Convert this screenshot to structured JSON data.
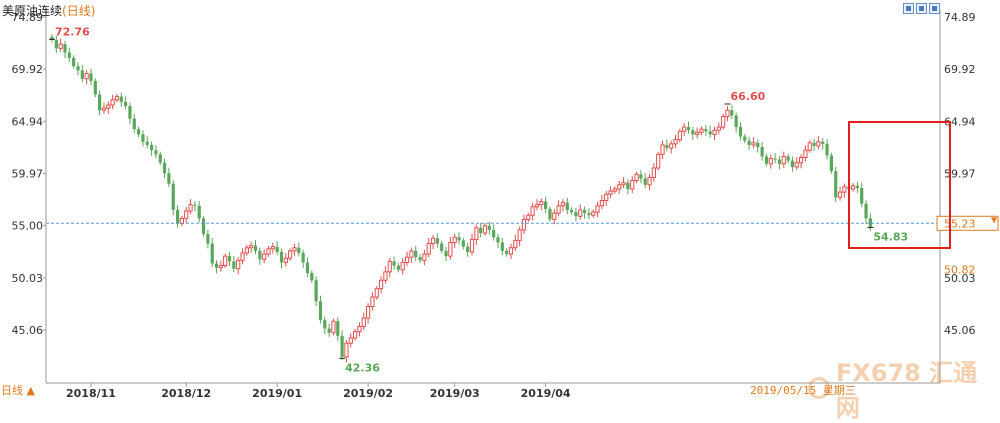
{
  "chart_title": "美原油连续",
  "chart_subtitle": "(日线)",
  "period_label": "日线 ▲",
  "date_stamp": "2019/05/15 星期三",
  "watermark": "FX678 汇通网",
  "colors": {
    "up": "#e05050",
    "down": "#5aa65a",
    "dash": "#5a9bd5",
    "box": "#e02020",
    "orange": "#e07a20"
  },
  "chart_data": {
    "type": "candlestick",
    "title": "美原油连续",
    "y_ticks": [
      74.89,
      69.92,
      64.94,
      59.97,
      55.0,
      50.03,
      45.06
    ],
    "ylim": [
      42.36,
      74.89
    ],
    "x_tick_labels": [
      "2018/11",
      "2018/12",
      "2019/01",
      "2019/02",
      "2019/03",
      "2019/04"
    ],
    "x_tick_index": [
      9,
      31,
      52,
      73,
      93,
      114
    ],
    "annotations": {
      "high": 72.76,
      "peak": 66.6,
      "low": 42.36,
      "last": 54.83
    },
    "current_price": 55.23,
    "right_extra_label": 50.82,
    "closes": [
      72.7,
      71.9,
      72.3,
      71.5,
      71.0,
      70.2,
      69.8,
      69.0,
      69.5,
      68.8,
      67.5,
      66.0,
      66.2,
      66.5,
      67.0,
      67.3,
      66.8,
      66.4,
      65.2,
      64.2,
      63.7,
      63.0,
      62.7,
      62.2,
      61.8,
      61.0,
      60.0,
      59.0,
      56.5,
      55.2,
      55.7,
      56.4,
      57.0,
      56.9,
      55.7,
      54.2,
      53.3,
      51.4,
      51.0,
      51.2,
      52.1,
      51.6,
      50.9,
      51.7,
      52.4,
      52.9,
      53.1,
      52.6,
      51.8,
      52.3,
      52.8,
      53.0,
      52.5,
      51.5,
      51.9,
      52.6,
      52.9,
      52.4,
      51.5,
      50.5,
      49.8,
      47.8,
      46.0,
      45.2,
      44.8,
      45.9,
      44.5,
      42.5,
      43.8,
      44.3,
      44.9,
      45.4,
      46.2,
      47.3,
      48.2,
      49.0,
      49.8,
      50.6,
      51.6,
      51.2,
      50.8,
      51.5,
      52.0,
      52.6,
      52.0,
      51.7,
      52.3,
      53.3,
      53.8,
      53.3,
      52.6,
      52.1,
      53.4,
      53.9,
      53.6,
      53.0,
      52.5,
      53.7,
      54.8,
      54.3,
      55.0,
      54.6,
      53.9,
      53.4,
      52.6,
      52.3,
      52.9,
      53.6,
      54.6,
      55.6,
      56.0,
      56.8,
      57.0,
      57.3,
      56.6,
      55.6,
      56.2,
      56.9,
      57.2,
      56.5,
      56.3,
      55.9,
      56.5,
      56.2,
      56.0,
      56.3,
      56.9,
      57.4,
      58.0,
      58.3,
      58.5,
      58.9,
      59.1,
      58.5,
      59.3,
      59.9,
      59.5,
      58.9,
      59.6,
      60.5,
      61.8,
      62.7,
      62.4,
      62.8,
      63.2,
      64.0,
      64.4,
      64.1,
      63.7,
      63.9,
      64.2,
      64.0,
      63.7,
      64.1,
      64.4,
      65.4,
      66.0,
      65.5,
      64.4,
      63.5,
      63.1,
      62.7,
      62.9,
      62.5,
      61.6,
      60.9,
      61.4,
      61.3,
      60.9,
      61.6,
      61.2,
      60.6,
      61.0,
      61.5,
      62.2,
      62.9,
      62.6,
      63.0,
      62.8,
      61.7,
      60.2,
      57.7,
      58.2,
      58.7,
      58.5,
      58.8,
      58.6,
      57.1,
      55.7,
      54.9
    ]
  }
}
